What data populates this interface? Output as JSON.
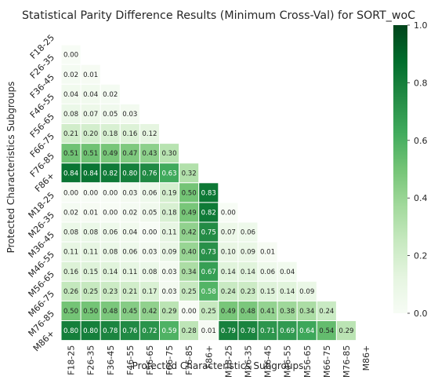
{
  "chart_data": {
    "type": "heatmap",
    "title": "Statistical Parity Difference Results (Minimum Cross-Val) for SORT_woC",
    "xlabel": "Protected Characteristics Subgroups",
    "ylabel": "Protected Characteristics Subgroups",
    "categories": [
      "F18-25",
      "F26-35",
      "F36-45",
      "F46-55",
      "F56-65",
      "F66-75",
      "F76-85",
      "F86+",
      "M18-25",
      "M26-35",
      "M36-45",
      "M46-55",
      "M56-65",
      "M66-75",
      "M76-85",
      "M86+"
    ],
    "mask": "upper-triangle-and-diagonal",
    "colormap": "Greens",
    "vmin": 0,
    "vmax": 1,
    "colorbar_ticks": [
      "0.0",
      "0.2",
      "0.4",
      "0.6",
      "0.8",
      "1.0"
    ],
    "values": [
      [],
      [
        "0.00"
      ],
      [
        "0.02",
        "0.01"
      ],
      [
        "0.04",
        "0.04",
        "0.02"
      ],
      [
        "0.08",
        "0.07",
        "0.05",
        "0.03"
      ],
      [
        "0.21",
        "0.20",
        "0.18",
        "0.16",
        "0.12"
      ],
      [
        "0.51",
        "0.51",
        "0.49",
        "0.47",
        "0.43",
        "0.30"
      ],
      [
        "0.84",
        "0.84",
        "0.82",
        "0.80",
        "0.76",
        "0.63",
        "0.32"
      ],
      [
        "0.00",
        "0.00",
        "0.00",
        "0.03",
        "0.06",
        "0.19",
        "0.50",
        "0.83"
      ],
      [
        "0.02",
        "0.01",
        "0.00",
        "0.02",
        "0.05",
        "0.18",
        "0.49",
        "0.82",
        "0.00"
      ],
      [
        "0.08",
        "0.08",
        "0.06",
        "0.04",
        "0.00",
        "0.11",
        "0.42",
        "0.75",
        "0.07",
        "0.06"
      ],
      [
        "0.11",
        "0.11",
        "0.08",
        "0.06",
        "0.03",
        "0.09",
        "0.40",
        "0.73",
        "0.10",
        "0.09",
        "0.01"
      ],
      [
        "0.16",
        "0.15",
        "0.14",
        "0.11",
        "0.08",
        "0.03",
        "0.34",
        "0.67",
        "0.14",
        "0.14",
        "0.06",
        "0.04"
      ],
      [
        "0.26",
        "0.25",
        "0.23",
        "0.21",
        "0.17",
        "0.03",
        "0.25",
        "0.58",
        "0.24",
        "0.23",
        "0.15",
        "0.14",
        "0.09"
      ],
      [
        "0.50",
        "0.50",
        "0.48",
        "0.45",
        "0.42",
        "0.29",
        "0.00",
        "0.25",
        "0.49",
        "0.48",
        "0.41",
        "0.38",
        "0.34",
        "0.24"
      ],
      [
        "0.80",
        "0.80",
        "0.78",
        "0.76",
        "0.72",
        "0.59",
        "0.28",
        "0.01",
        "0.79",
        "0.78",
        "0.71",
        "0.69",
        "0.64",
        "0.54",
        "0.29"
      ]
    ]
  }
}
